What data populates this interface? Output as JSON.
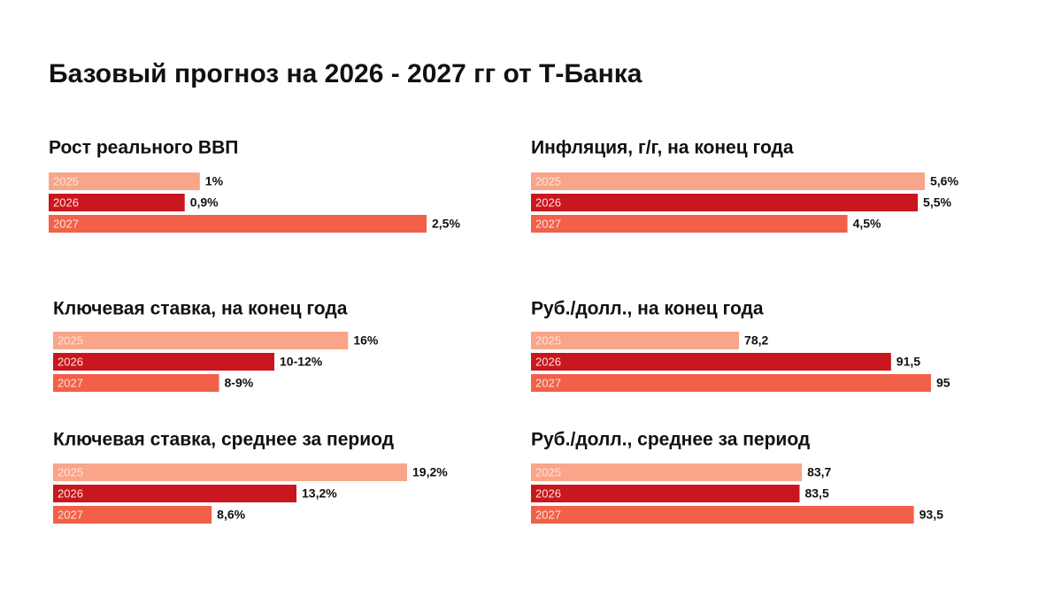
{
  "title": "Базовый прогноз на 2026 - 2027 гг от Т-Банка",
  "chart_data": [
    {
      "type": "bar",
      "orientation": "horizontal",
      "title": "Рост реального ВВП",
      "categories": [
        "2025",
        "2026",
        "2027"
      ],
      "values": [
        1,
        0.9,
        2.5
      ],
      "value_labels": [
        "1%",
        "0,9%",
        "2,5%"
      ],
      "colors": [
        "#f9a58a",
        "#c8171e",
        "#f2604a"
      ],
      "xlim": [
        0,
        2.5
      ]
    },
    {
      "type": "bar",
      "orientation": "horizontal",
      "title": "Инфляция, г/г, на конец года",
      "categories": [
        "2025",
        "2026",
        "2027"
      ],
      "values": [
        5.6,
        5.5,
        4.5
      ],
      "value_labels": [
        "5,6%",
        "5,5%",
        "4,5%"
      ],
      "colors": [
        "#f9a58a",
        "#c8171e",
        "#f2604a"
      ],
      "xlim": [
        0,
        5.6
      ]
    },
    {
      "type": "bar",
      "orientation": "horizontal",
      "title": "Ключевая ставка, на конец года",
      "categories": [
        "2025",
        "2026",
        "2027"
      ],
      "values": [
        16,
        [
          10,
          12
        ],
        [
          8,
          9
        ]
      ],
      "value_labels": [
        "16%",
        "10-12%",
        "8-9%"
      ],
      "colors": [
        "#f9a58a",
        "#c8171e",
        "#f2604a"
      ],
      "xlim": [
        0,
        19.2
      ]
    },
    {
      "type": "bar",
      "orientation": "horizontal",
      "title": "Руб./долл., на конец года",
      "categories": [
        "2025",
        "2026",
        "2027"
      ],
      "values": [
        78.2,
        91.5,
        95
      ],
      "value_labels": [
        "78,2",
        "91,5",
        "95"
      ],
      "colors": [
        "#f9a58a",
        "#c8171e",
        "#f2604a"
      ],
      "xlim": [
        60,
        95
      ]
    },
    {
      "type": "bar",
      "orientation": "horizontal",
      "title": "Ключевая ставка, среднее за период",
      "categories": [
        "2025",
        "2026",
        "2027"
      ],
      "values": [
        19.2,
        13.2,
        8.6
      ],
      "value_labels": [
        "19,2%",
        "13,2%",
        "8,6%"
      ],
      "colors": [
        "#f9a58a",
        "#c8171e",
        "#f2604a"
      ],
      "xlim": [
        0,
        19.2
      ]
    },
    {
      "type": "bar",
      "orientation": "horizontal",
      "title": "Руб./долл., среднее за период",
      "categories": [
        "2025",
        "2026",
        "2027"
      ],
      "values": [
        83.7,
        83.5,
        93.5
      ],
      "value_labels": [
        "83,7",
        "83,5",
        "93,5"
      ],
      "colors": [
        "#f9a58a",
        "#c8171e",
        "#f2604a"
      ],
      "xlim": [
        60,
        95
      ]
    }
  ]
}
